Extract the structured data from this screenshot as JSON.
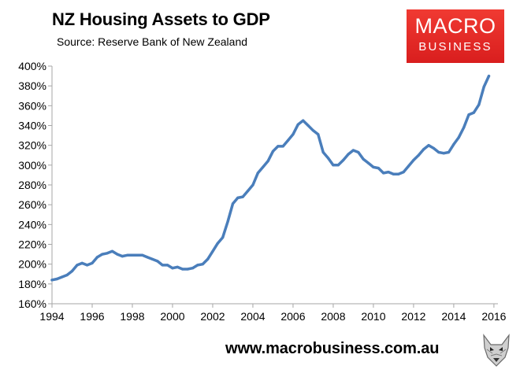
{
  "header": {
    "title": "NZ Housing Assets to GDP",
    "subtitle": "Source: Reserve Bank of New Zealand"
  },
  "logo": {
    "line1": "MACRO",
    "line2": "BUSINESS"
  },
  "footer": {
    "url": "www.macrobusiness.com.au"
  },
  "icons": {
    "wolf": "wolf-head-icon"
  },
  "colors": {
    "line": "#4a7ebb",
    "logo_bg": "#e5302a",
    "axis": "#a6a6a6"
  },
  "chart_data": {
    "type": "line",
    "title": "NZ Housing Assets to GDP",
    "xlabel": "",
    "ylabel": "",
    "xlim": [
      1994,
      2016.2
    ],
    "ylim": [
      160,
      400
    ],
    "grid": false,
    "x_ticks": [
      1994,
      1996,
      1998,
      2000,
      2002,
      2004,
      2006,
      2008,
      2010,
      2012,
      2014,
      2016
    ],
    "y_ticks": [
      160,
      180,
      200,
      220,
      240,
      260,
      280,
      300,
      320,
      340,
      360,
      380,
      400
    ],
    "x_tick_labels": [
      "1994",
      "1996",
      "1998",
      "2000",
      "2002",
      "2004",
      "2006",
      "2008",
      "2010",
      "2012",
      "2014",
      "2016"
    ],
    "y_tick_labels": [
      "160%",
      "180%",
      "200%",
      "220%",
      "240%",
      "260%",
      "280%",
      "300%",
      "320%",
      "340%",
      "360%",
      "380%",
      "400%"
    ],
    "series": [
      {
        "name": "NZ Housing Assets to GDP",
        "x": [
          1994.0,
          1994.25,
          1994.5,
          1994.75,
          1995.0,
          1995.25,
          1995.5,
          1995.75,
          1996.0,
          1996.25,
          1996.5,
          1996.75,
          1997.0,
          1997.25,
          1997.5,
          1997.75,
          1998.0,
          1998.25,
          1998.5,
          1998.75,
          1999.0,
          1999.25,
          1999.5,
          1999.75,
          2000.0,
          2000.25,
          2000.5,
          2000.75,
          2001.0,
          2001.25,
          2001.5,
          2001.75,
          2002.0,
          2002.25,
          2002.5,
          2002.75,
          2003.0,
          2003.25,
          2003.5,
          2003.75,
          2004.0,
          2004.25,
          2004.5,
          2004.75,
          2005.0,
          2005.25,
          2005.5,
          2005.75,
          2006.0,
          2006.25,
          2006.5,
          2006.75,
          2007.0,
          2007.25,
          2007.5,
          2007.75,
          2008.0,
          2008.25,
          2008.5,
          2008.75,
          2009.0,
          2009.25,
          2009.5,
          2009.75,
          2010.0,
          2010.25,
          2010.5,
          2010.75,
          2011.0,
          2011.25,
          2011.5,
          2011.75,
          2012.0,
          2012.25,
          2012.5,
          2012.75,
          2013.0,
          2013.25,
          2013.5,
          2013.75,
          2014.0,
          2014.25,
          2014.5,
          2014.75,
          2015.0,
          2015.25,
          2015.5,
          2015.75
        ],
        "values": [
          184,
          185,
          187,
          189,
          193,
          199,
          201,
          199,
          201,
          207,
          210,
          211,
          213,
          210,
          208,
          209,
          209,
          209,
          209,
          207,
          205,
          203,
          199,
          199,
          196,
          197,
          195,
          195,
          196,
          199,
          200,
          205,
          213,
          221,
          227,
          243,
          261,
          267,
          268,
          274,
          280,
          292,
          298,
          304,
          314,
          319,
          319,
          325,
          331,
          341,
          345,
          340,
          335,
          331,
          313,
          307,
          300,
          300,
          305,
          311,
          315,
          313,
          306,
          302,
          298,
          297,
          292,
          293,
          291,
          291,
          293,
          299,
          305,
          310,
          316,
          320,
          317,
          313,
          312,
          313,
          321,
          328,
          338,
          351,
          353,
          361,
          379,
          390
        ]
      }
    ]
  }
}
